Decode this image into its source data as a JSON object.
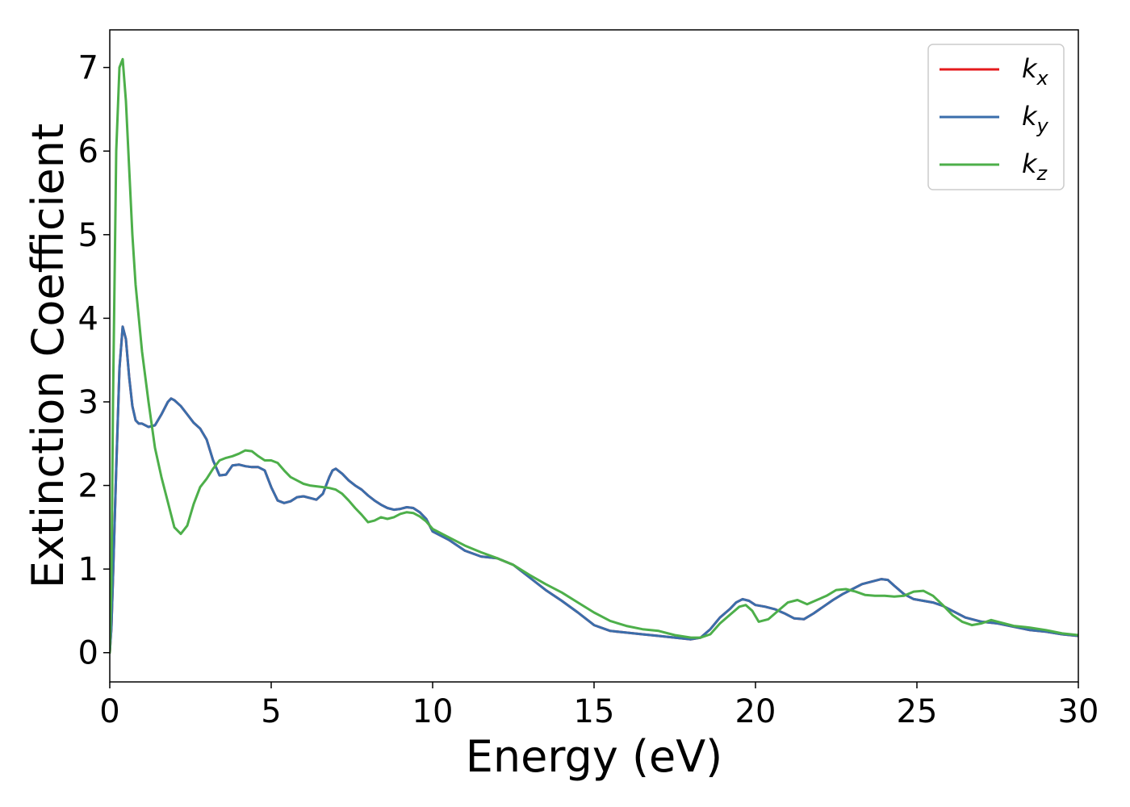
{
  "chart_data": {
    "type": "line",
    "xlabel": "Energy (eV)",
    "ylabel": "Extinction Coefficient",
    "xlim": [
      0,
      30
    ],
    "ylim": [
      -0.35,
      7.45
    ],
    "xticks": [
      0,
      5,
      10,
      15,
      20,
      25,
      30
    ],
    "yticks": [
      0,
      1,
      2,
      3,
      4,
      5,
      6,
      7
    ],
    "grid": false,
    "legend_position": "top-right",
    "series": [
      {
        "name": "k_x",
        "legend_main": "k",
        "legend_sub": "x",
        "color": "#e41a1c",
        "x": [
          0,
          0.05,
          0.1,
          0.2,
          0.3,
          0.4,
          0.5,
          0.6,
          0.7,
          0.8,
          0.9,
          1.0,
          1.2,
          1.4,
          1.6,
          1.8,
          1.9,
          2.0,
          2.2,
          2.4,
          2.6,
          2.8,
          3.0,
          3.2,
          3.4,
          3.6,
          3.8,
          4.0,
          4.2,
          4.4,
          4.6,
          4.8,
          5.0,
          5.2,
          5.4,
          5.6,
          5.8,
          6.0,
          6.2,
          6.4,
          6.6,
          6.8,
          6.9,
          7.0,
          7.2,
          7.4,
          7.6,
          7.8,
          8.0,
          8.2,
          8.4,
          8.6,
          8.8,
          9.0,
          9.2,
          9.4,
          9.6,
          9.8,
          10.0,
          10.5,
          11.0,
          11.5,
          12.0,
          12.5,
          13.0,
          13.5,
          14.0,
          14.5,
          15.0,
          15.5,
          16.0,
          16.5,
          17.0,
          17.5,
          18.0,
          18.3,
          18.6,
          18.9,
          19.2,
          19.4,
          19.6,
          19.8,
          20.0,
          20.3,
          20.6,
          20.9,
          21.2,
          21.5,
          21.8,
          22.1,
          22.4,
          22.7,
          23.0,
          23.3,
          23.6,
          23.9,
          24.1,
          24.3,
          24.6,
          24.9,
          25.2,
          25.5,
          25.8,
          26.1,
          26.5,
          27.0,
          27.5,
          28.0,
          28.5,
          29.0,
          29.5,
          30.0
        ],
        "y": [
          0.0,
          0.3,
          0.9,
          2.2,
          3.4,
          3.9,
          3.75,
          3.3,
          2.95,
          2.78,
          2.74,
          2.74,
          2.7,
          2.72,
          2.85,
          3.0,
          3.04,
          3.02,
          2.95,
          2.85,
          2.75,
          2.68,
          2.55,
          2.3,
          2.12,
          2.13,
          2.24,
          2.25,
          2.23,
          2.22,
          2.22,
          2.18,
          1.98,
          1.82,
          1.79,
          1.81,
          1.86,
          1.87,
          1.85,
          1.83,
          1.9,
          2.1,
          2.18,
          2.2,
          2.14,
          2.06,
          2.0,
          1.95,
          1.88,
          1.82,
          1.77,
          1.73,
          1.71,
          1.72,
          1.74,
          1.73,
          1.68,
          1.6,
          1.45,
          1.35,
          1.22,
          1.15,
          1.13,
          1.05,
          0.9,
          0.75,
          0.62,
          0.48,
          0.33,
          0.26,
          0.24,
          0.22,
          0.2,
          0.18,
          0.16,
          0.18,
          0.28,
          0.42,
          0.52,
          0.6,
          0.64,
          0.62,
          0.57,
          0.55,
          0.52,
          0.47,
          0.41,
          0.4,
          0.47,
          0.55,
          0.63,
          0.7,
          0.76,
          0.82,
          0.85,
          0.88,
          0.87,
          0.8,
          0.7,
          0.64,
          0.62,
          0.6,
          0.56,
          0.5,
          0.42,
          0.37,
          0.35,
          0.31,
          0.27,
          0.25,
          0.22,
          0.2
        ]
      },
      {
        "name": "k_y",
        "legend_main": "k",
        "legend_sub": "y",
        "color": "#3a6eab",
        "x": [
          0,
          0.05,
          0.1,
          0.2,
          0.3,
          0.4,
          0.5,
          0.6,
          0.7,
          0.8,
          0.9,
          1.0,
          1.2,
          1.4,
          1.6,
          1.8,
          1.9,
          2.0,
          2.2,
          2.4,
          2.6,
          2.8,
          3.0,
          3.2,
          3.4,
          3.6,
          3.8,
          4.0,
          4.2,
          4.4,
          4.6,
          4.8,
          5.0,
          5.2,
          5.4,
          5.6,
          5.8,
          6.0,
          6.2,
          6.4,
          6.6,
          6.8,
          6.9,
          7.0,
          7.2,
          7.4,
          7.6,
          7.8,
          8.0,
          8.2,
          8.4,
          8.6,
          8.8,
          9.0,
          9.2,
          9.4,
          9.6,
          9.8,
          10.0,
          10.5,
          11.0,
          11.5,
          12.0,
          12.5,
          13.0,
          13.5,
          14.0,
          14.5,
          15.0,
          15.5,
          16.0,
          16.5,
          17.0,
          17.5,
          18.0,
          18.3,
          18.6,
          18.9,
          19.2,
          19.4,
          19.6,
          19.8,
          20.0,
          20.3,
          20.6,
          20.9,
          21.2,
          21.5,
          21.8,
          22.1,
          22.4,
          22.7,
          23.0,
          23.3,
          23.6,
          23.9,
          24.1,
          24.3,
          24.6,
          24.9,
          25.2,
          25.5,
          25.8,
          26.1,
          26.5,
          27.0,
          27.5,
          28.0,
          28.5,
          29.0,
          29.5,
          30.0
        ],
        "y": [
          0.0,
          0.3,
          0.9,
          2.2,
          3.4,
          3.9,
          3.75,
          3.3,
          2.95,
          2.78,
          2.74,
          2.74,
          2.7,
          2.72,
          2.85,
          3.0,
          3.04,
          3.02,
          2.95,
          2.85,
          2.75,
          2.68,
          2.55,
          2.3,
          2.12,
          2.13,
          2.24,
          2.25,
          2.23,
          2.22,
          2.22,
          2.18,
          1.98,
          1.82,
          1.79,
          1.81,
          1.86,
          1.87,
          1.85,
          1.83,
          1.9,
          2.1,
          2.18,
          2.2,
          2.14,
          2.06,
          2.0,
          1.95,
          1.88,
          1.82,
          1.77,
          1.73,
          1.71,
          1.72,
          1.74,
          1.73,
          1.68,
          1.6,
          1.45,
          1.35,
          1.22,
          1.15,
          1.13,
          1.05,
          0.9,
          0.75,
          0.62,
          0.48,
          0.33,
          0.26,
          0.24,
          0.22,
          0.2,
          0.18,
          0.16,
          0.18,
          0.28,
          0.42,
          0.52,
          0.6,
          0.64,
          0.62,
          0.57,
          0.55,
          0.52,
          0.47,
          0.41,
          0.4,
          0.47,
          0.55,
          0.63,
          0.7,
          0.76,
          0.82,
          0.85,
          0.88,
          0.87,
          0.8,
          0.7,
          0.64,
          0.62,
          0.6,
          0.56,
          0.5,
          0.42,
          0.37,
          0.35,
          0.31,
          0.27,
          0.25,
          0.22,
          0.2
        ]
      },
      {
        "name": "k_z",
        "legend_main": "k",
        "legend_sub": "z",
        "color": "#4daf4a",
        "x": [
          0,
          0.05,
          0.1,
          0.2,
          0.3,
          0.4,
          0.5,
          0.6,
          0.7,
          0.8,
          0.9,
          1.0,
          1.2,
          1.4,
          1.6,
          1.8,
          2.0,
          2.2,
          2.4,
          2.6,
          2.8,
          3.0,
          3.2,
          3.4,
          3.6,
          3.8,
          4.0,
          4.2,
          4.4,
          4.6,
          4.8,
          5.0,
          5.2,
          5.4,
          5.6,
          5.8,
          6.0,
          6.2,
          6.4,
          6.6,
          6.8,
          7.0,
          7.2,
          7.4,
          7.6,
          7.8,
          8.0,
          8.2,
          8.4,
          8.6,
          8.8,
          9.0,
          9.2,
          9.4,
          9.6,
          9.8,
          10.0,
          10.5,
          11.0,
          11.5,
          12.0,
          12.5,
          13.0,
          13.5,
          14.0,
          14.5,
          15.0,
          15.5,
          16.0,
          16.5,
          17.0,
          17.5,
          18.0,
          18.3,
          18.6,
          18.9,
          19.2,
          19.5,
          19.7,
          19.9,
          20.1,
          20.4,
          20.7,
          21.0,
          21.3,
          21.6,
          21.9,
          22.2,
          22.5,
          22.8,
          23.1,
          23.4,
          23.7,
          24.0,
          24.3,
          24.6,
          24.9,
          25.2,
          25.5,
          25.8,
          26.1,
          26.4,
          26.7,
          27.0,
          27.3,
          27.6,
          28.0,
          28.5,
          29.0,
          29.5,
          30.0
        ],
        "y": [
          0.0,
          0.8,
          3.0,
          6.0,
          7.0,
          7.1,
          6.6,
          5.8,
          5.0,
          4.4,
          4.0,
          3.6,
          3.0,
          2.45,
          2.1,
          1.8,
          1.5,
          1.42,
          1.52,
          1.78,
          1.98,
          2.08,
          2.2,
          2.3,
          2.33,
          2.35,
          2.38,
          2.42,
          2.41,
          2.35,
          2.3,
          2.3,
          2.27,
          2.18,
          2.1,
          2.06,
          2.02,
          2.0,
          1.99,
          1.98,
          1.97,
          1.95,
          1.9,
          1.82,
          1.73,
          1.65,
          1.56,
          1.58,
          1.62,
          1.6,
          1.62,
          1.66,
          1.68,
          1.67,
          1.63,
          1.57,
          1.48,
          1.38,
          1.28,
          1.2,
          1.13,
          1.05,
          0.93,
          0.82,
          0.72,
          0.6,
          0.48,
          0.38,
          0.32,
          0.28,
          0.26,
          0.21,
          0.18,
          0.18,
          0.22,
          0.35,
          0.45,
          0.55,
          0.57,
          0.5,
          0.37,
          0.4,
          0.5,
          0.6,
          0.63,
          0.58,
          0.63,
          0.68,
          0.75,
          0.76,
          0.73,
          0.69,
          0.68,
          0.68,
          0.67,
          0.68,
          0.73,
          0.74,
          0.68,
          0.57,
          0.45,
          0.37,
          0.33,
          0.35,
          0.39,
          0.36,
          0.32,
          0.3,
          0.27,
          0.23,
          0.21
        ]
      }
    ]
  }
}
